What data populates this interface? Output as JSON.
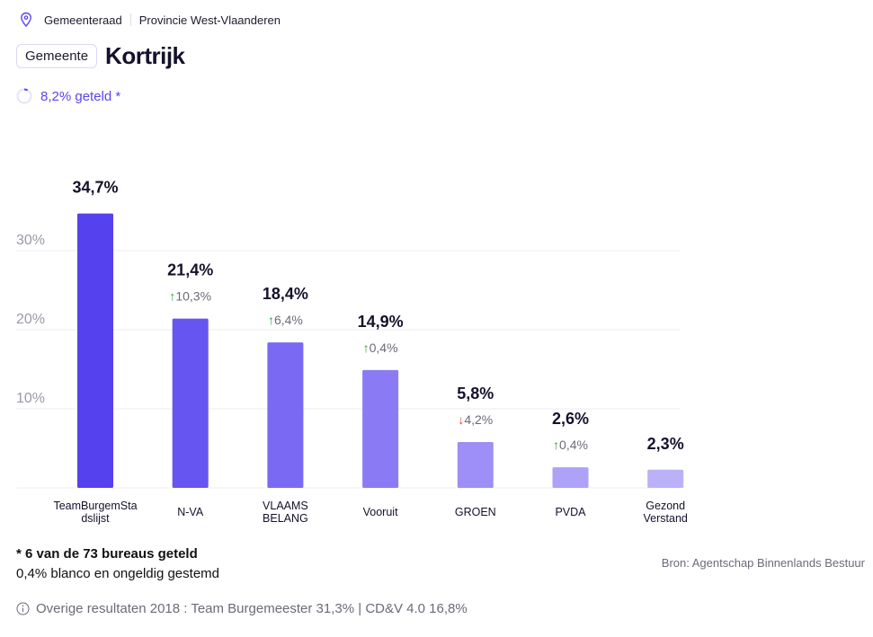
{
  "breadcrumb": {
    "icon": "map-pin-icon",
    "items": [
      "Gemeenteraad",
      "Provincie West-Vlaanderen"
    ]
  },
  "header": {
    "badge": "Gemeente",
    "title": "Kortrijk"
  },
  "progress": {
    "label": "8,2% geteld *",
    "percent": 8.2,
    "icon": "progress-spinner-icon"
  },
  "colors": {
    "accent": "#5a45ee",
    "up": "#2e9e3e",
    "down": "#e0413a"
  },
  "chart_data": {
    "type": "bar",
    "categories": [
      "TeamBurgemStadslijst",
      "N-VA",
      "VLAAMS BELANG",
      "Vooruit",
      "GROEN",
      "PVDA",
      "Gezond Verstand"
    ],
    "category_labels": [
      [
        "TeamBurgemSta",
        "dslijst"
      ],
      [
        "N-VA"
      ],
      [
        "VLAAMS",
        "BELANG"
      ],
      [
        "Vooruit"
      ],
      [
        "GROEN"
      ],
      [
        "PVDA"
      ],
      [
        "Gezond",
        "Verstand"
      ]
    ],
    "values": [
      34.7,
      21.4,
      18.4,
      14.9,
      5.8,
      2.6,
      2.3
    ],
    "value_labels": [
      "34,7%",
      "21,4%",
      "18,4%",
      "14,9%",
      "5,8%",
      "2,6%",
      "2,3%"
    ],
    "changes": [
      null,
      {
        "direction": "up",
        "label": "10,3%"
      },
      {
        "direction": "up",
        "label": "6,4%"
      },
      {
        "direction": "up",
        "label": "0,4%"
      },
      {
        "direction": "down",
        "label": "4,2%"
      },
      {
        "direction": "up",
        "label": "0,4%"
      },
      null
    ],
    "bar_colors": [
      "#5641ee",
      "#6655f0",
      "#7a69f2",
      "#8a7bf4",
      "#9e8ff6",
      "#ada2f7",
      "#bbb1f9"
    ],
    "yticks": [
      10,
      20,
      30
    ],
    "ytick_labels": [
      "10%",
      "20%",
      "30%"
    ],
    "ylim": [
      0,
      35
    ],
    "grid": true
  },
  "footer": {
    "counted_note": "* 6 van de 73 bureaus geteld",
    "blank_note": "0,4% blanco en ongeldig gestemd",
    "source": "Bron: Agentschap Binnenlands Bestuur",
    "other_results": "Overige resultaten 2018 : Team Burgemeester 31,3% | CD&V 4.0 16,8%",
    "info_icon": "info-icon"
  }
}
